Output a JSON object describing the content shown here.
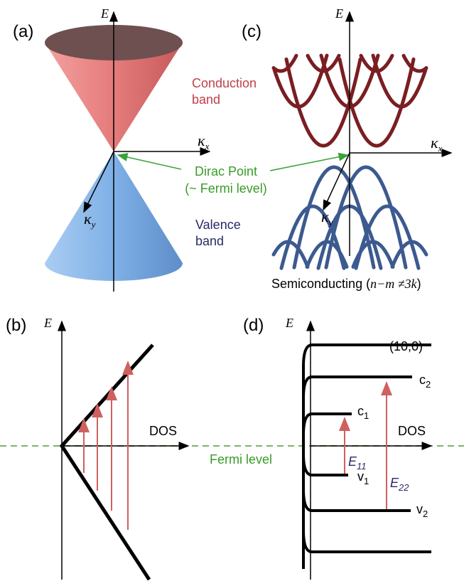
{
  "panel_a": {
    "label": "(a)",
    "axis_e": "E",
    "axis_kx": {
      "base": "κ",
      "sub": "x"
    },
    "axis_ky": {
      "base": "κ",
      "sub": "y"
    },
    "conduction": [
      "Conduction",
      "band"
    ],
    "valence": [
      "Valence",
      "band"
    ]
  },
  "dirac_point": [
    "Dirac Point",
    "(~ Fermi level)"
  ],
  "panel_c": {
    "label": "(c)",
    "axis_e": "E",
    "axis_kx": {
      "base": "κ",
      "sub": "x"
    },
    "axis_ky": {
      "base": "κ",
      "sub": "y"
    },
    "caption": {
      "text": "Semiconducting (",
      "math": "n−m ≠3k",
      "close": ")"
    }
  },
  "panel_b": {
    "label": "(b)",
    "axis_e": "E",
    "axis_dos": "DOS"
  },
  "fermi_level": "Fermi level",
  "panel_d": {
    "label": "(d)",
    "axis_e": "E",
    "axis_dos": "DOS",
    "chirality": "(10,0)",
    "c1": {
      "base": "c",
      "sub": "1"
    },
    "c2": {
      "base": "c",
      "sub": "2"
    },
    "v1": {
      "base": "v",
      "sub": "1"
    },
    "v2": {
      "base": "v",
      "sub": "2"
    },
    "e11": {
      "base": "E",
      "sub": "11"
    },
    "e22": {
      "base": "E",
      "sub": "22"
    }
  }
}
